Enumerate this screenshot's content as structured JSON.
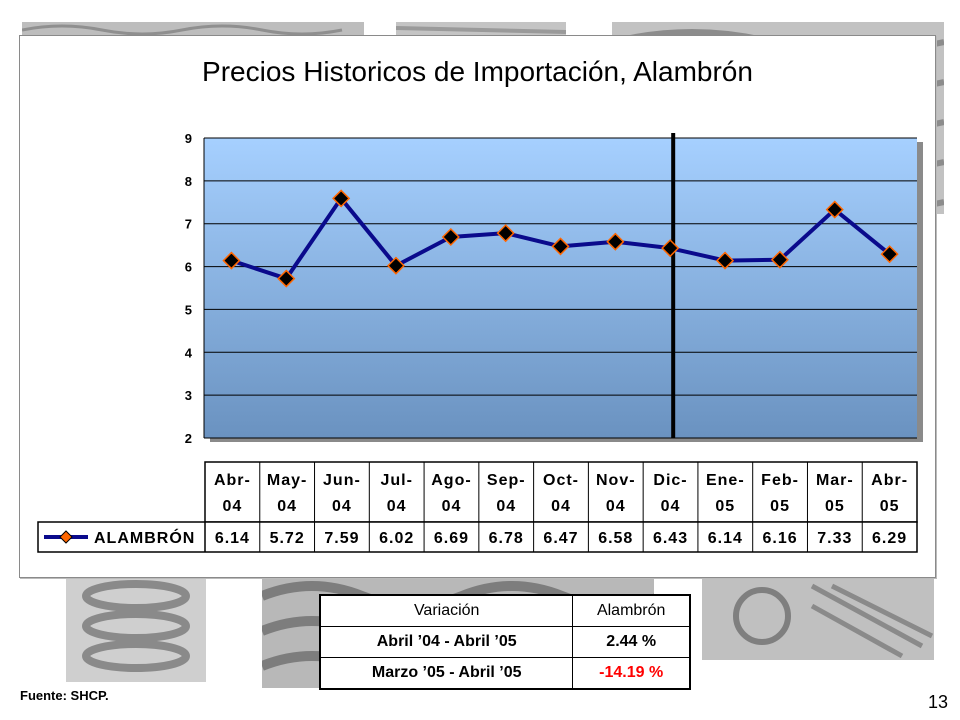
{
  "slide": {
    "source": "Fuente: SHCP.",
    "page_number": "13"
  },
  "chart_data": {
    "type": "line",
    "title": "Precios Historicos de Importación, Alambrón",
    "categories": [
      "Abr-04",
      "May-04",
      "Jun-04",
      "Jul-04",
      "Ago-04",
      "Sep-04",
      "Oct-04",
      "Nov-04",
      "Dic-04",
      "Ene-05",
      "Feb-05",
      "Mar-05",
      "Abr-05"
    ],
    "category_lines": [
      [
        "Abr-",
        "04"
      ],
      [
        "May-",
        "04"
      ],
      [
        "Jun-",
        "04"
      ],
      [
        "Jul-",
        "04"
      ],
      [
        "Ago-",
        "04"
      ],
      [
        "Sep-",
        "04"
      ],
      [
        "Oct-",
        "04"
      ],
      [
        "Nov-",
        "04"
      ],
      [
        "Dic-",
        "04"
      ],
      [
        "Ene-",
        "05"
      ],
      [
        "Feb-",
        "05"
      ],
      [
        "Mar-",
        "05"
      ],
      [
        "Abr-",
        "05"
      ]
    ],
    "series": [
      {
        "name": "ALAMBRÓN",
        "values": [
          6.14,
          5.72,
          7.59,
          6.02,
          6.69,
          6.78,
          6.47,
          6.58,
          6.43,
          6.14,
          6.16,
          7.33,
          6.29
        ],
        "labels": [
          "6.14",
          "5.72",
          "7.59",
          "6.02",
          "6.69",
          "6.78",
          "6.47",
          "6.58",
          "6.43",
          "6.14",
          "6.16",
          "7.33",
          "6.29"
        ]
      }
    ],
    "ylim": [
      2,
      9
    ],
    "yticks": [
      "2",
      "3",
      "4",
      "5",
      "6",
      "7",
      "8",
      "9"
    ],
    "grid": true,
    "vertical_marker_after_category": "Dic-04",
    "data_table": true,
    "colors": {
      "line": "#0a0a8c",
      "marker_fill": "#000000",
      "marker_edge": "#ff6600",
      "plot_top": "#a6d0ff",
      "plot_bottom": "#6a92c0"
    }
  },
  "variation_table": {
    "headers": [
      "Variación",
      "Alambrón"
    ],
    "rows": [
      {
        "period": "Abril ’04 - Abril ’05",
        "value": "2.44 %"
      },
      {
        "period": "Marzo ’05 - Abril ’05",
        "value": "-14.19 %"
      }
    ]
  }
}
